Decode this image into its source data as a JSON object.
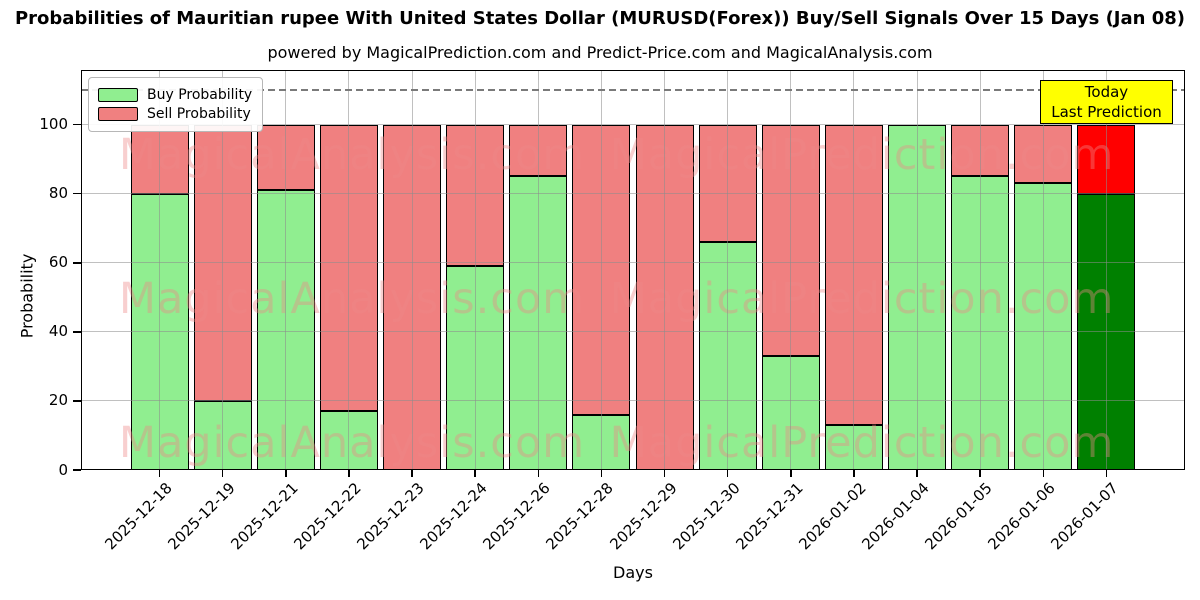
{
  "chart_data": {
    "type": "bar",
    "stacked": true,
    "title": "Probabilities of Mauritian rupee With United States Dollar (MURUSD(Forex)) Buy/Sell Signals Over 15 Days (Jan 08)",
    "subtitle": "powered by MagicalPrediction.com and Predict-Price.com and MagicalAnalysis.com",
    "xlabel": "Days",
    "ylabel": "Probability",
    "ylim": [
      0,
      116
    ],
    "yticks": [
      0,
      20,
      40,
      60,
      80,
      100
    ],
    "grid": true,
    "dashed_line_y": 110,
    "categories": [
      "2025-12-18",
      "2025-12-19",
      "2025-12-21",
      "2025-12-22",
      "2025-12-23",
      "2025-12-24",
      "2025-12-26",
      "2025-12-28",
      "2025-12-29",
      "2025-12-30",
      "2025-12-31",
      "2026-01-02",
      "2026-01-04",
      "2026-01-05",
      "2026-01-06",
      "2026-01-07"
    ],
    "series": [
      {
        "name": "Buy Probability",
        "color": "#90ee90",
        "values": [
          80,
          20,
          81,
          17,
          0,
          59,
          85,
          16,
          0,
          66,
          33,
          13,
          100,
          85,
          83,
          80
        ]
      },
      {
        "name": "Sell Probability",
        "color": "#f08080",
        "values": [
          20,
          80,
          19,
          83,
          100,
          41,
          15,
          84,
          100,
          34,
          67,
          87,
          0,
          15,
          17,
          20
        ]
      }
    ],
    "last_bar_colors": {
      "buy": "#008000",
      "sell": "#ff0000"
    },
    "legend": {
      "position": "top-left",
      "entries": [
        {
          "label": "Buy Probability",
          "color": "#90ee90"
        },
        {
          "label": "Sell Probability",
          "color": "#f08080"
        }
      ]
    },
    "annotation_box": {
      "lines": [
        "Today",
        "Last Prediction"
      ],
      "bg_color": "#ffff00"
    },
    "watermarks": [
      "MagicalAnalysis.com",
      "MagicalPrediction.com"
    ],
    "colors": {
      "bar_edge": "#000000",
      "grid": "#8c8c8c",
      "dashed_line": "#7a7a7a"
    }
  }
}
